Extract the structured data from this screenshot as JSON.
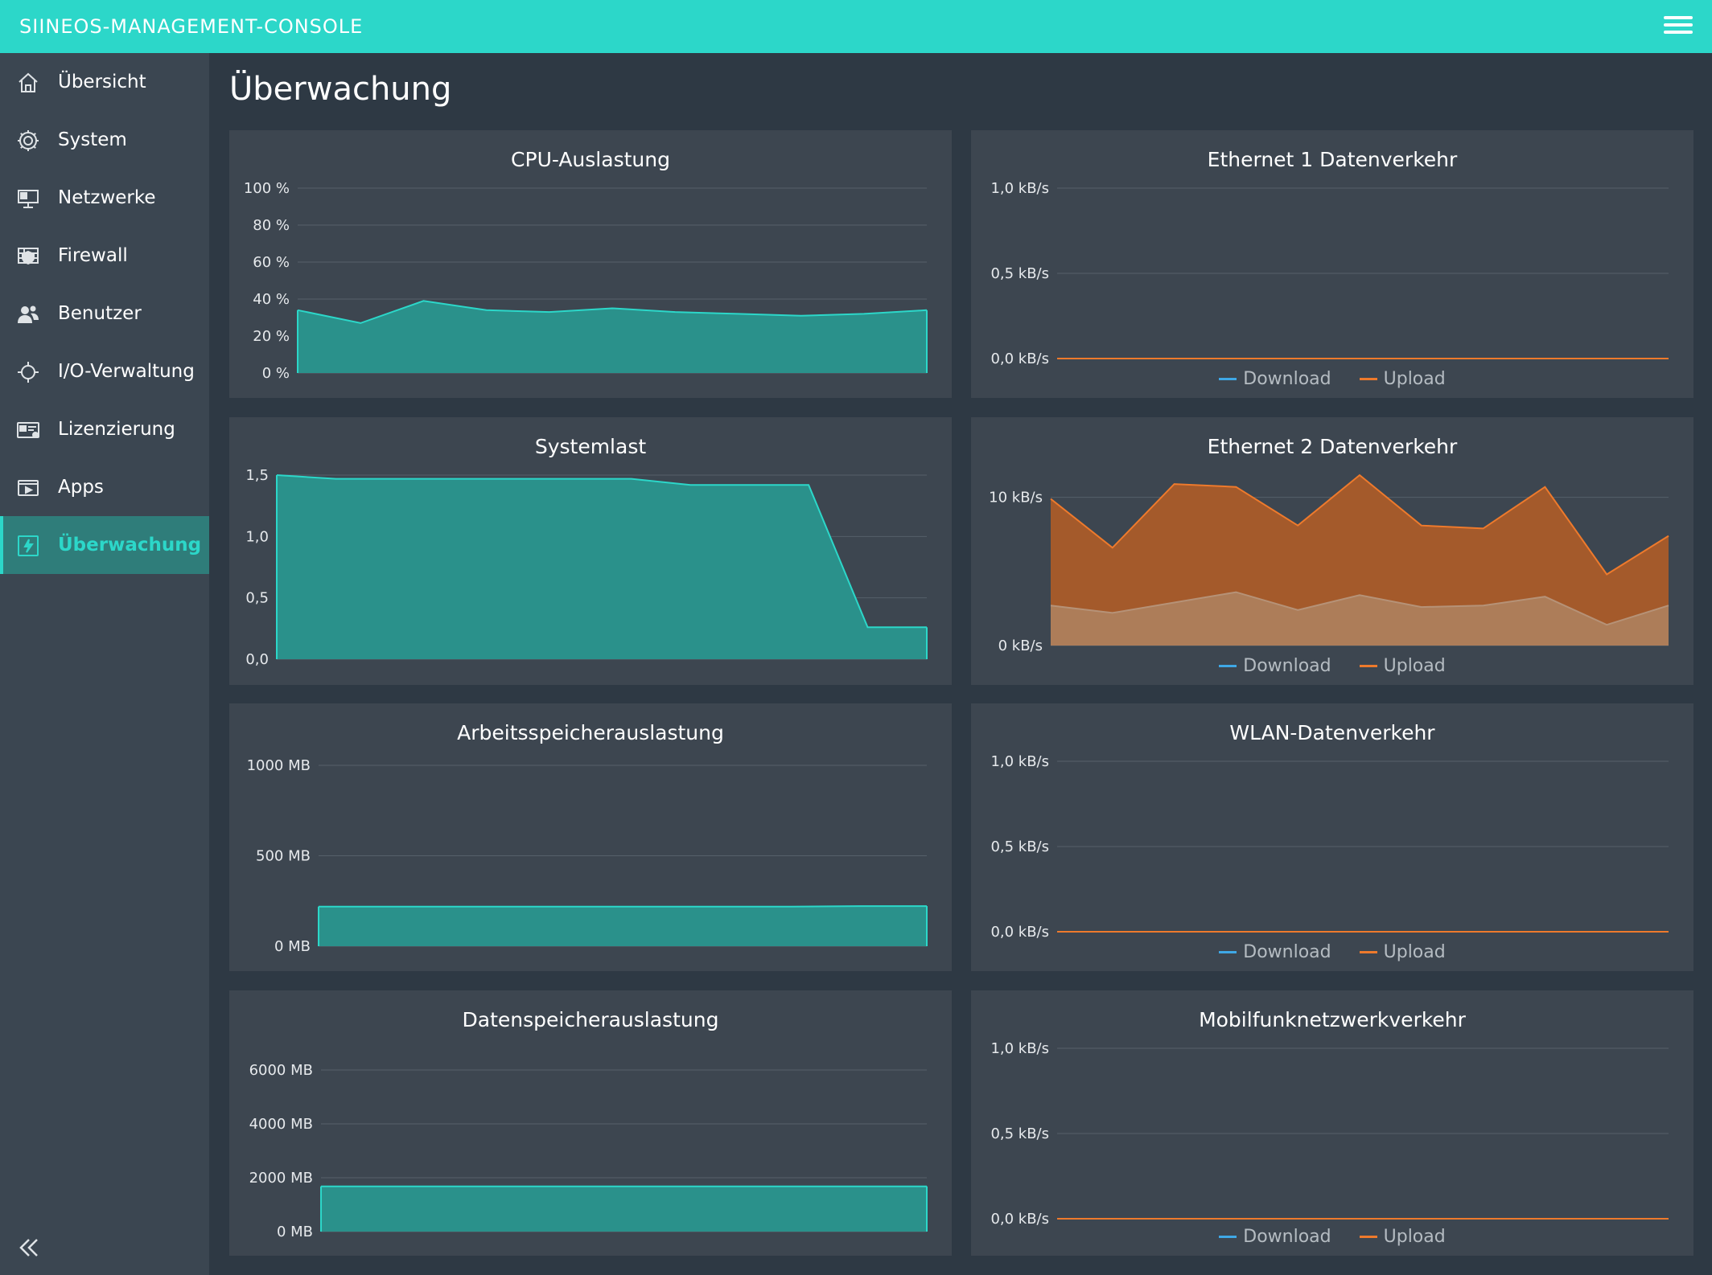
{
  "app": {
    "title": "SIINEOS-MANAGEMENT-CONSOLE"
  },
  "colors": {
    "accent": "#2cd7c9",
    "teal_fill": "#2a918b",
    "orange": "#ee7a2c",
    "download": "#3fa8e6",
    "panel": "#3d4650"
  },
  "sidebar": {
    "items": [
      {
        "label": "Übersicht",
        "icon": "home-icon",
        "active": false
      },
      {
        "label": "System",
        "icon": "gear-icon",
        "active": false
      },
      {
        "label": "Netzwerke",
        "icon": "monitor-network-icon",
        "active": false
      },
      {
        "label": "Firewall",
        "icon": "firewall-icon",
        "active": false
      },
      {
        "label": "Benutzer",
        "icon": "users-icon",
        "active": false
      },
      {
        "label": "I/O-Verwaltung",
        "icon": "io-icon",
        "active": false
      },
      {
        "label": "Lizenzierung",
        "icon": "license-card-icon",
        "active": false
      },
      {
        "label": "Apps",
        "icon": "apps-icon",
        "active": false
      },
      {
        "label": "Überwachung",
        "icon": "monitoring-icon",
        "active": true
      }
    ],
    "collapse_icon": "double-chevron-left-icon"
  },
  "main": {
    "title": "Überwachung"
  },
  "chart_data": [
    {
      "id": "cpu",
      "type": "area",
      "title": "CPU-Auslastung",
      "ylim": [
        0,
        100
      ],
      "yticks": [
        0,
        20,
        40,
        60,
        80,
        100
      ],
      "ytick_labels": [
        "0 %",
        "20 %",
        "40 %",
        "60 %",
        "80 %",
        "100 %"
      ],
      "grid": true,
      "series": [
        {
          "values": [
            34,
            27,
            39,
            34,
            33,
            35,
            33,
            32,
            31,
            32,
            34
          ],
          "color": "#2cd7c9"
        }
      ]
    },
    {
      "id": "eth1",
      "type": "area",
      "title": "Ethernet 1 Datenverkehr",
      "ylim": [
        0,
        1.0
      ],
      "yticks": [
        0,
        0.5,
        1.0
      ],
      "ytick_labels": [
        "0,0 kB/s",
        "0,5 kB/s",
        "1,0 kB/s"
      ],
      "grid": true,
      "legend": [
        "Download",
        "Upload"
      ],
      "legend_position": "bottom",
      "series": [
        {
          "name": "Download",
          "values": [
            0,
            0,
            0,
            0,
            0,
            0,
            0,
            0,
            0,
            0,
            0
          ],
          "color": "#3fa8e6"
        },
        {
          "name": "Upload",
          "values": [
            0,
            0,
            0,
            0,
            0,
            0,
            0,
            0,
            0,
            0,
            0
          ],
          "color": "#ee7a2c"
        }
      ]
    },
    {
      "id": "load",
      "type": "area",
      "title": "Systemlast",
      "ylim": [
        0,
        1.5
      ],
      "yticks": [
        0,
        0.5,
        1.0,
        1.5
      ],
      "ytick_labels": [
        "0,0",
        "0,5",
        "1,0",
        "1,5"
      ],
      "grid": true,
      "series": [
        {
          "values": [
            1.5,
            1.47,
            1.47,
            1.47,
            1.47,
            1.47,
            1.47,
            1.42,
            1.42,
            1.42,
            0.26,
            0.26
          ],
          "color": "#2cd7c9"
        }
      ]
    },
    {
      "id": "eth2",
      "type": "area",
      "title": "Ethernet 2 Datenverkehr",
      "ylim": [
        0,
        11.5
      ],
      "yticks": [
        0,
        10
      ],
      "ytick_labels": [
        "0 kB/s",
        "10 kB/s"
      ],
      "grid": true,
      "legend": [
        "Download",
        "Upload"
      ],
      "legend_position": "bottom",
      "series": [
        {
          "name": "Download",
          "values": [
            2.7,
            2.2,
            2.9,
            3.6,
            2.4,
            3.4,
            2.6,
            2.7,
            3.3,
            1.4,
            2.7
          ],
          "color": "#3fa8e6"
        },
        {
          "name": "Upload",
          "values": [
            9.9,
            6.6,
            10.9,
            10.7,
            8.1,
            11.5,
            8.1,
            7.9,
            10.7,
            4.8,
            7.4
          ],
          "color": "#ee7a2c"
        }
      ]
    },
    {
      "id": "mem",
      "type": "area",
      "title": "Arbeitsspeicherauslastung",
      "ylim": [
        0,
        1000
      ],
      "yticks": [
        0,
        500,
        1000
      ],
      "ytick_labels": [
        "0 MB",
        "500 MB",
        "1000 MB"
      ],
      "grid": true,
      "series": [
        {
          "values": [
            219,
            219,
            219,
            219,
            219,
            219,
            219,
            219,
            222,
            222
          ],
          "color": "#2cd7c9"
        }
      ]
    },
    {
      "id": "wlan",
      "type": "area",
      "title": "WLAN-Datenverkehr",
      "ylim": [
        0,
        1.0
      ],
      "yticks": [
        0,
        0.5,
        1.0
      ],
      "ytick_labels": [
        "0,0 kB/s",
        "0,5 kB/s",
        "1,0 kB/s"
      ],
      "grid": true,
      "legend": [
        "Download",
        "Upload"
      ],
      "legend_position": "bottom",
      "series": [
        {
          "name": "Download",
          "values": [
            0,
            0,
            0,
            0,
            0,
            0,
            0,
            0,
            0,
            0,
            0
          ],
          "color": "#3fa8e6"
        },
        {
          "name": "Upload",
          "values": [
            0,
            0,
            0,
            0,
            0,
            0,
            0,
            0,
            0,
            0,
            0
          ],
          "color": "#ee7a2c"
        }
      ]
    },
    {
      "id": "disk",
      "type": "area",
      "title": "Datenspeicherauslastung",
      "ylim": [
        0,
        6000
      ],
      "yticks": [
        0,
        2000,
        4000,
        6000
      ],
      "ytick_labels": [
        "0 MB",
        "2000 MB",
        "4000 MB",
        "6000 MB"
      ],
      "grid": true,
      "series": [
        {
          "values": [
            1680,
            1680,
            1680,
            1680,
            1680,
            1680,
            1680,
            1680,
            1680,
            1680
          ],
          "color": "#2cd7c9"
        }
      ]
    },
    {
      "id": "mobile",
      "type": "area",
      "title": "Mobilfunknetzwerkverkehr",
      "ylim": [
        0,
        1.0
      ],
      "yticks": [
        0,
        0.5,
        1.0
      ],
      "ytick_labels": [
        "0,0 kB/s",
        "0,5 kB/s",
        "1,0 kB/s"
      ],
      "grid": true,
      "legend": [
        "Download",
        "Upload"
      ],
      "legend_position": "bottom",
      "series": [
        {
          "name": "Download",
          "values": [
            0,
            0,
            0,
            0,
            0,
            0,
            0,
            0,
            0,
            0,
            0
          ],
          "color": "#3fa8e6"
        },
        {
          "name": "Upload",
          "values": [
            0,
            0,
            0,
            0,
            0,
            0,
            0,
            0,
            0,
            0,
            0
          ],
          "color": "#ee7a2c"
        }
      ]
    }
  ]
}
